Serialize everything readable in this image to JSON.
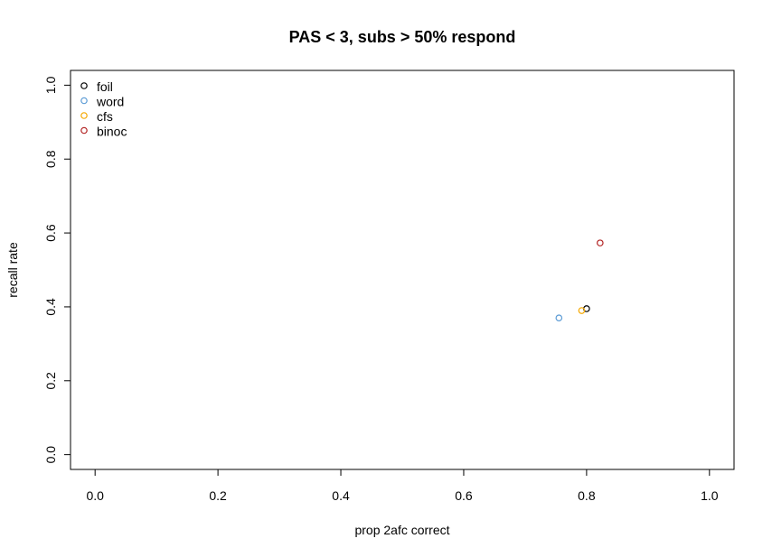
{
  "chart_data": {
    "type": "scatter",
    "title": "PAS < 3, subs > 50% respond",
    "xlabel": "prop 2afc correct",
    "ylabel": "recall rate",
    "xlim": [
      -0.04,
      1.04
    ],
    "ylim": [
      -0.04,
      1.04
    ],
    "xticks": [
      0.0,
      0.2,
      0.4,
      0.6,
      0.8,
      1.0
    ],
    "yticks": [
      0.0,
      0.2,
      0.4,
      0.6,
      0.8,
      1.0
    ],
    "xtick_labels": [
      "0.0",
      "0.2",
      "0.4",
      "0.6",
      "0.8",
      "1.0"
    ],
    "ytick_labels": [
      "0.0",
      "0.2",
      "0.4",
      "0.6",
      "0.8",
      "1.0"
    ],
    "grid": false,
    "legend_position": "top-left",
    "series": [
      {
        "name": "foil",
        "color": "#000000",
        "marker": "open-circle",
        "x": [
          0.8
        ],
        "y": [
          0.395
        ]
      },
      {
        "name": "word",
        "color": "#5b9bd5",
        "marker": "open-circle",
        "x": [
          0.755
        ],
        "y": [
          0.37
        ]
      },
      {
        "name": "cfs",
        "color": "#f5a800",
        "marker": "open-circle",
        "x": [
          0.792
        ],
        "y": [
          0.39
        ]
      },
      {
        "name": "binoc",
        "color": "#b22222",
        "marker": "open-circle",
        "x": [
          0.822
        ],
        "y": [
          0.573
        ]
      }
    ]
  }
}
